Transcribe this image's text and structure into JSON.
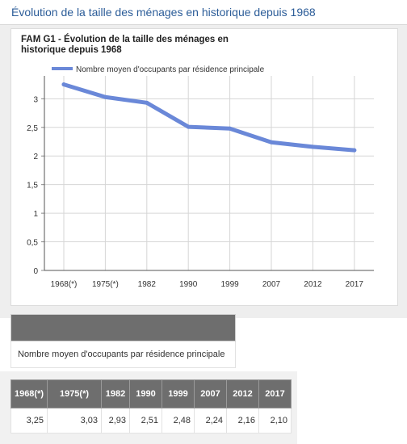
{
  "page": {
    "title": "Évolution de la taille des ménages en historique depuis 1968"
  },
  "chart_data": {
    "type": "line",
    "title": "FAM G1 - Évolution de la taille des ménages en historique depuis 1968",
    "categories": [
      "1968(*)",
      "1975(*)",
      "1982",
      "1990",
      "1999",
      "2007",
      "2012",
      "2017"
    ],
    "series": [
      {
        "name": "Nombre moyen d'occupants par résidence principale",
        "values": [
          3.25,
          3.03,
          2.93,
          2.51,
          2.48,
          2.24,
          2.16,
          2.1
        ]
      }
    ],
    "y_ticks": [
      "0",
      "0,5",
      "1",
      "1,5",
      "2",
      "2,5",
      "3"
    ],
    "ylim": [
      0,
      3.4
    ],
    "grid": true,
    "legend_position": "top-left",
    "line_color": "#6a88d8"
  },
  "table": {
    "series_label": "Nombre moyen d'occupants par résidence principale",
    "headers": [
      "1968(*)",
      "1975(*)",
      "1982",
      "1990",
      "1999",
      "2007",
      "2012",
      "2017"
    ],
    "values": [
      "3,25",
      "3,03",
      "2,93",
      "2,51",
      "2,48",
      "2,24",
      "2,16",
      "2,10"
    ]
  }
}
